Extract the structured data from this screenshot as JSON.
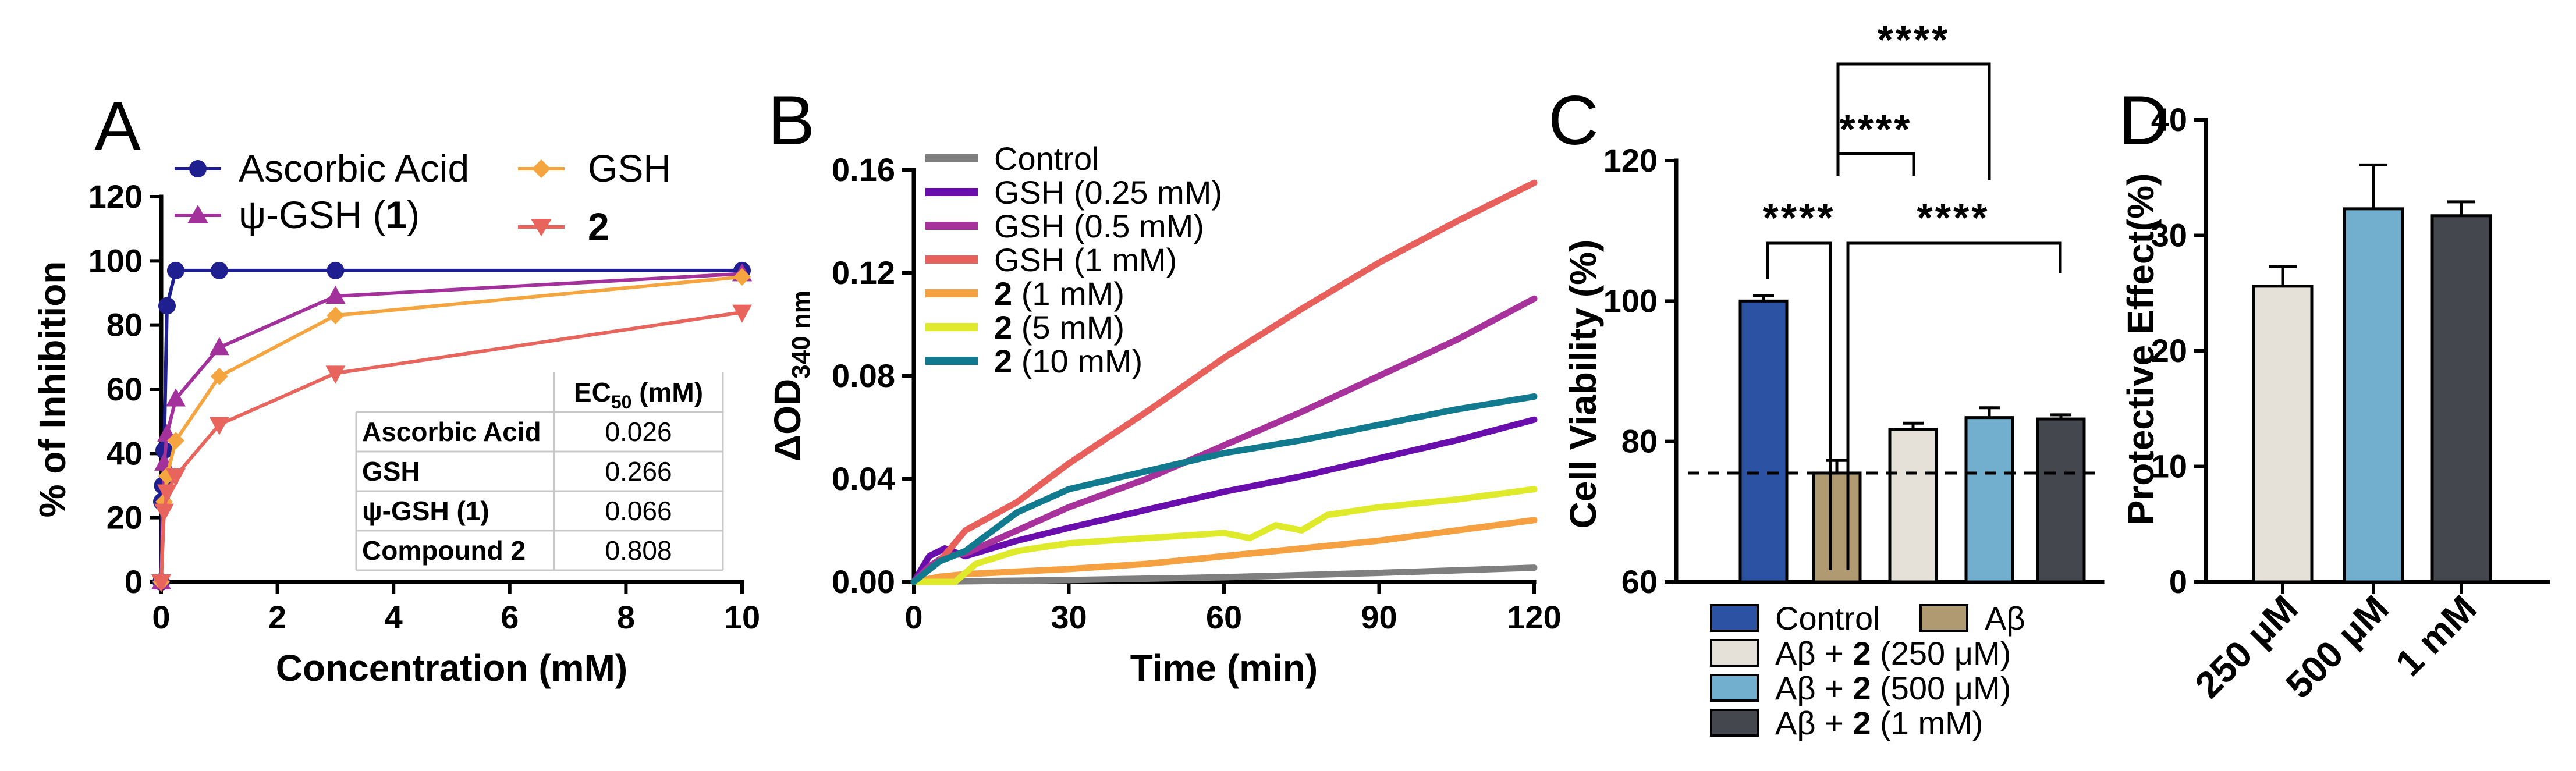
{
  "panels": {
    "A": {
      "letter": "A"
    },
    "B": {
      "letter": "B"
    },
    "C": {
      "letter": "C"
    },
    "D": {
      "letter": "D"
    }
  },
  "ec50_table": {
    "header": "EC",
    "header_sub": "50",
    "header_unit": " (mM)",
    "rows": [
      {
        "name": "Ascorbic Acid",
        "value": "0.026"
      },
      {
        "name": "GSH",
        "value": "0.266"
      },
      {
        "name": "ψ-GSH (1)",
        "value": "0.066"
      },
      {
        "name": "Compound 2",
        "value": "0.808"
      }
    ]
  },
  "significance": {
    "label": "****"
  },
  "chart_data": [
    {
      "panel": "A",
      "type": "line",
      "xlabel": "Concentration (mM)",
      "ylabel": "% of Inhibition",
      "xlim": [
        0,
        10
      ],
      "ylim": [
        0,
        120
      ],
      "xticks": [
        0,
        2,
        4,
        6,
        8,
        10
      ],
      "yticks": [
        0,
        20,
        40,
        60,
        80,
        100,
        120
      ],
      "series": [
        {
          "name": "Ascorbic Acid",
          "color": "#1f1f8f",
          "marker": "circle",
          "x": [
            0,
            0.01,
            0.025,
            0.05,
            0.1,
            0.25,
            1,
            3,
            10
          ],
          "y": [
            0,
            25,
            30,
            41,
            86,
            97,
            97,
            97,
            97
          ]
        },
        {
          "name": "ψ-GSH (1)",
          "color": "#a3319c",
          "marker": "triangle-up",
          "x": [
            0,
            0.05,
            0.1,
            0.25,
            1,
            3,
            10
          ],
          "y": [
            0,
            37,
            46,
            57,
            73,
            89,
            96
          ]
        },
        {
          "name": "GSH",
          "color": "#f5a53f",
          "marker": "diamond",
          "x": [
            0,
            0.05,
            0.1,
            0.25,
            1,
            3,
            10
          ],
          "y": [
            0,
            25,
            33,
            44,
            64,
            83,
            95
          ]
        },
        {
          "name": "2",
          "color": "#e8655e",
          "marker": "triangle-down",
          "x": [
            0,
            0.05,
            0.1,
            0.25,
            1,
            3,
            10
          ],
          "y": [
            0,
            22,
            28,
            33,
            49,
            65,
            84
          ]
        }
      ]
    },
    {
      "panel": "B",
      "type": "line",
      "xlabel": "Time (min)",
      "ylabel": "ΔOD",
      "ylabel_sub": "340 nm",
      "xlim": [
        0,
        120
      ],
      "ylim": [
        0,
        0.16
      ],
      "xticks": [
        0,
        30,
        60,
        90,
        120
      ],
      "yticks": [
        "0.00",
        "0.04",
        "0.08",
        "0.12",
        "0.16"
      ],
      "series": [
        {
          "name": "Control",
          "color": "#7f7f7f",
          "x": [
            0,
            30,
            60,
            90,
            120
          ],
          "y": [
            0,
            0.0007,
            0.0018,
            0.0035,
            0.0055
          ]
        },
        {
          "name": "GSH (0.25 mM)",
          "color": "#6a0dad",
          "x": [
            0,
            3,
            6,
            10,
            20,
            30,
            45,
            60,
            75,
            90,
            105,
            120
          ],
          "y": [
            0,
            0.01,
            0.013,
            0.01,
            0.016,
            0.021,
            0.028,
            0.035,
            0.041,
            0.048,
            0.055,
            0.063
          ]
        },
        {
          "name": "GSH (0.5 mM)",
          "color": "#a8329b",
          "x": [
            0,
            3,
            6,
            10,
            20,
            30,
            45,
            60,
            75,
            90,
            105,
            120
          ],
          "y": [
            0,
            0.006,
            0.01,
            0.011,
            0.02,
            0.029,
            0.04,
            0.053,
            0.066,
            0.08,
            0.094,
            0.11
          ]
        },
        {
          "name": "GSH (1 mM)",
          "color": "#e8605c",
          "x": [
            0,
            5,
            10,
            20,
            30,
            45,
            60,
            75,
            90,
            105,
            120
          ],
          "y": [
            0,
            0.008,
            0.02,
            0.031,
            0.046,
            0.066,
            0.087,
            0.106,
            0.124,
            0.14,
            0.155
          ]
        },
        {
          "name": "2 (1 mM)",
          "color": "#f5a142",
          "x": [
            0,
            5,
            10,
            20,
            30,
            45,
            60,
            75,
            90,
            105,
            120
          ],
          "y": [
            0,
            0.002,
            0.003,
            0.004,
            0.005,
            0.007,
            0.01,
            0.013,
            0.016,
            0.02,
            0.024
          ]
        },
        {
          "name": "2 (5 mM)",
          "color": "#dfea2b",
          "x": [
            0,
            8,
            12,
            20,
            30,
            45,
            60,
            65,
            70,
            75,
            80,
            90,
            105,
            120
          ],
          "y": [
            0,
            0.0,
            0.007,
            0.012,
            0.015,
            0.017,
            0.019,
            0.017,
            0.022,
            0.02,
            0.026,
            0.029,
            0.032,
            0.036
          ]
        },
        {
          "name": "2 (10 mM)",
          "color": "#127a8f",
          "x": [
            0,
            5,
            10,
            20,
            30,
            45,
            60,
            75,
            90,
            105,
            120
          ],
          "y": [
            0,
            0.008,
            0.012,
            0.027,
            0.036,
            0.043,
            0.05,
            0.055,
            0.061,
            0.067,
            0.072
          ]
        }
      ],
      "legend_bold_prefix": "2"
    },
    {
      "panel": "C",
      "type": "bar",
      "ylabel": "Cell Viability (%)",
      "ylim": [
        60,
        120
      ],
      "yticks": [
        60,
        80,
        100,
        120
      ],
      "reference_line": 75.5,
      "categories": [
        "Control",
        "Aβ",
        "Aβ + 2 (250 μM)",
        "Aβ + 2 (500 μM)",
        "Aβ + 2 (1 mM)"
      ],
      "legend": [
        {
          "prefix": "Control",
          "bold": "",
          "suffix": ""
        },
        {
          "prefix": "Aβ",
          "bold": "",
          "suffix": ""
        },
        {
          "prefix": "Aβ + ",
          "bold": "2",
          "suffix": " (250 μM)"
        },
        {
          "prefix": "Aβ + ",
          "bold": "2",
          "suffix": " (500 μM)"
        },
        {
          "prefix": "Aβ + ",
          "bold": "2",
          "suffix": " (1 mM)"
        }
      ],
      "values": [
        100,
        75.5,
        81.7,
        83.4,
        83.2
      ],
      "errors": [
        0.8,
        1.8,
        0.9,
        1.4,
        0.6
      ],
      "colors": [
        "#2c52a3",
        "#b09a72",
        "#e5e1d8",
        "#72afcf",
        "#44484e"
      ]
    },
    {
      "panel": "D",
      "type": "bar",
      "ylabel": "Protective Effect(%)",
      "ylim": [
        0,
        40
      ],
      "yticks": [
        0,
        10,
        20,
        30,
        40
      ],
      "categories": [
        "250 μM",
        "500 μM",
        "1 mM"
      ],
      "values": [
        25.6,
        32.3,
        31.7
      ],
      "errors": [
        1.7,
        3.8,
        1.2
      ],
      "colors": [
        "#e5e1d8",
        "#72afcf",
        "#44484e"
      ]
    }
  ]
}
